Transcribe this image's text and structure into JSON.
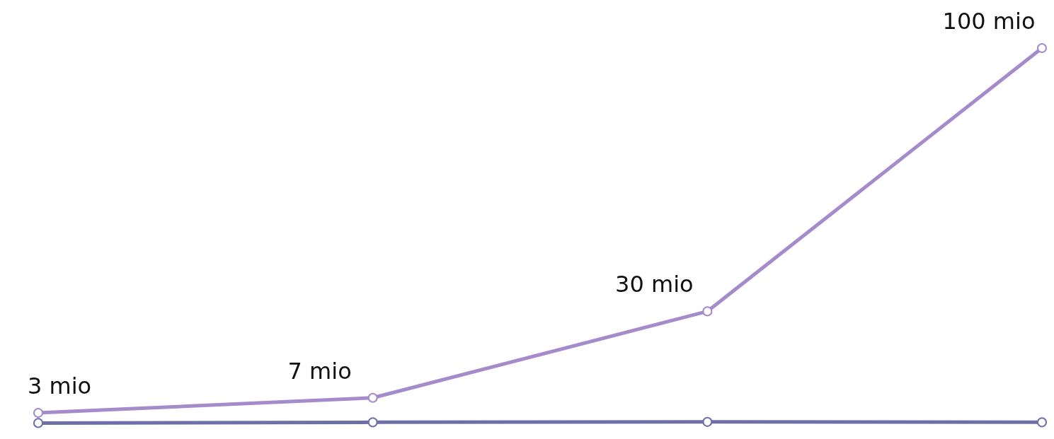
{
  "chart_data": {
    "type": "line",
    "categories": [
      null,
      null,
      null,
      null
    ],
    "marker": "circle",
    "series": [
      {
        "color": "#a58bcb",
        "values": [
          3,
          7,
          30,
          100
        ],
        "value_labels": [
          "3 mio",
          "7 mio",
          "30 mio",
          "100 mio"
        ]
      },
      {
        "color": "#6f6fa8",
        "values": [
          0.3,
          0.5,
          0.6,
          0.5
        ]
      }
    ]
  }
}
